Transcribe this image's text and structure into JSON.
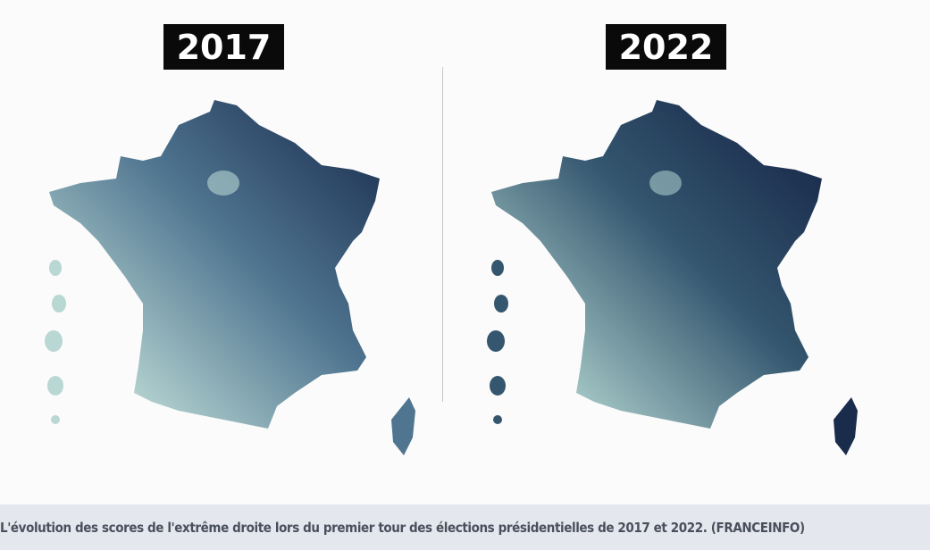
{
  "maps": [
    {
      "year_label": "2017",
      "colors": {
        "dark": "#23395a",
        "mid": "#4f7590",
        "light": "#b9d7d3"
      }
    },
    {
      "year_label": "2022",
      "colors": {
        "dark": "#1a2c4c",
        "mid": "#34566f",
        "light": "#a9ccc9"
      }
    }
  ],
  "caption": "L'évolution des scores de l'extrême droite lors du premier tour des élections présidentielles de 2017 et 2022. (FRANCEINFO)"
}
